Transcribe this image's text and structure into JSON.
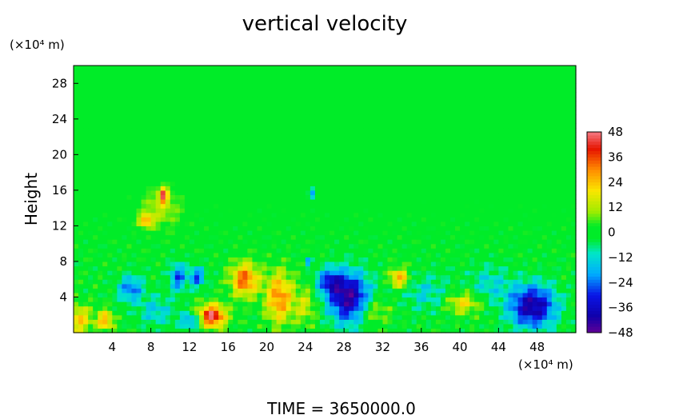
{
  "chart_data": {
    "type": "heatmap",
    "title": "vertical velocity",
    "ylabel": "Height",
    "x_unit_label": "(×10⁴ m)",
    "y_unit_label": "(×10⁴ m)",
    "xlim": [
      0,
      52
    ],
    "ylim": [
      0,
      30
    ],
    "x_ticks": [
      4,
      8,
      12,
      16,
      20,
      24,
      28,
      32,
      36,
      40,
      44,
      48
    ],
    "y_ticks": [
      4,
      8,
      12,
      16,
      20,
      24,
      28
    ],
    "colorbar": {
      "range": [
        -48,
        48
      ],
      "ticks": [
        48,
        36,
        24,
        12,
        0,
        -12,
        -24,
        -36,
        -48
      ],
      "tick_labels": [
        "48",
        "36",
        "24",
        "12",
        "0",
        "−12",
        "−24",
        "−36",
        "−48"
      ]
    },
    "grid": false,
    "features": [
      {
        "x": 28.5,
        "y": 4.0,
        "sx": 1.5,
        "sy": 2.0,
        "value": -44
      },
      {
        "x": 47.5,
        "y": 3.0,
        "sx": 1.7,
        "sy": 1.7,
        "value": -42
      },
      {
        "x": 26.5,
        "y": 5.8,
        "sx": 0.9,
        "sy": 1.0,
        "value": -26
      },
      {
        "x": 14.3,
        "y": 1.9,
        "sx": 1.0,
        "sy": 0.9,
        "value": 46
      },
      {
        "x": 17.7,
        "y": 6.0,
        "sx": 1.0,
        "sy": 1.3,
        "value": 34
      },
      {
        "x": 21.3,
        "y": 4.0,
        "sx": 1.0,
        "sy": 2.0,
        "value": 30
      },
      {
        "x": 33.7,
        "y": 6.2,
        "sx": 0.7,
        "sy": 0.8,
        "value": 28
      },
      {
        "x": 40.3,
        "y": 3.4,
        "sx": 1.3,
        "sy": 0.9,
        "value": 20
      },
      {
        "x": 3.3,
        "y": 1.4,
        "sx": 0.6,
        "sy": 0.8,
        "value": 26
      },
      {
        "x": 0.5,
        "y": 1.5,
        "sx": 1.0,
        "sy": 1.2,
        "value": 22
      },
      {
        "x": 9.3,
        "y": 15.5,
        "sx": 0.3,
        "sy": 0.6,
        "value": 40
      },
      {
        "x": 7.5,
        "y": 12.6,
        "sx": 0.5,
        "sy": 0.5,
        "value": 26
      },
      {
        "x": 5.9,
        "y": 5.0,
        "sx": 0.9,
        "sy": 1.0,
        "value": -24
      },
      {
        "x": 10.8,
        "y": 6.3,
        "sx": 0.6,
        "sy": 1.1,
        "value": -26
      },
      {
        "x": 12.8,
        "y": 6.3,
        "sx": 0.6,
        "sy": 0.8,
        "value": -26
      },
      {
        "x": 12.2,
        "y": 1.4,
        "sx": 0.8,
        "sy": 0.6,
        "value": -24
      },
      {
        "x": 24.6,
        "y": 15.7,
        "sx": 0.2,
        "sy": 0.4,
        "value": -30
      },
      {
        "x": 24.3,
        "y": 8.0,
        "sx": 0.2,
        "sy": 0.3,
        "value": -24
      },
      {
        "x": 8.5,
        "y": 2.5,
        "sx": 1.3,
        "sy": 1.2,
        "value": -14
      },
      {
        "x": 36.5,
        "y": 4.5,
        "sx": 1.8,
        "sy": 1.5,
        "value": -12
      },
      {
        "x": 43.0,
        "y": 5.5,
        "sx": 1.5,
        "sy": 1.5,
        "value": -12
      },
      {
        "x": 31.0,
        "y": 2.5,
        "sx": 1.2,
        "sy": 1.0,
        "value": 14
      },
      {
        "x": 24.0,
        "y": 3.0,
        "sx": 0.8,
        "sy": 1.5,
        "value": 14
      },
      {
        "x": 9.0,
        "y": 14.0,
        "sx": 1.5,
        "sy": 1.5,
        "value": 12
      }
    ]
  },
  "footer": {
    "time_label": "TIME  =  3650000.0"
  }
}
